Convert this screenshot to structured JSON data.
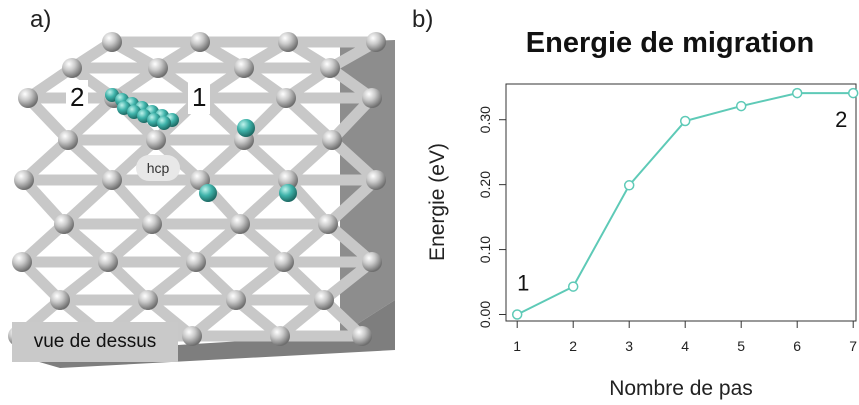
{
  "panel_a": {
    "label": "a)",
    "callout_left": "2",
    "callout_right": "1",
    "site_label": "hcp",
    "view_label": "vue de dessus",
    "colors": {
      "metal": "#c8c8c8",
      "adsorbate": "#3fb3aa"
    }
  },
  "panel_b": {
    "label": "b)"
  },
  "chart_data": {
    "type": "line",
    "title": "Energie de migration",
    "xlabel": "Nombre de pas",
    "ylabel": "Energie (eV)",
    "x": [
      1,
      2,
      3,
      4,
      5,
      6,
      7
    ],
    "series": [
      {
        "values": [
          0.0,
          0.043,
          0.199,
          0.298,
          0.321,
          0.341,
          0.341
        ],
        "color": "#5ecab7"
      }
    ],
    "xticks": [
      "1",
      "2",
      "3",
      "4",
      "5",
      "6",
      "7"
    ],
    "yticks": [
      "0.00",
      "0.10",
      "0.20",
      "0.30"
    ],
    "ylim": [
      -0.01,
      0.355
    ],
    "xlim": [
      0.8,
      7.05
    ],
    "grid": false,
    "annotations": [
      {
        "text": "1",
        "x": 1,
        "y": 0.0
      },
      {
        "text": "2",
        "x": 7,
        "y": 0.341
      }
    ]
  }
}
